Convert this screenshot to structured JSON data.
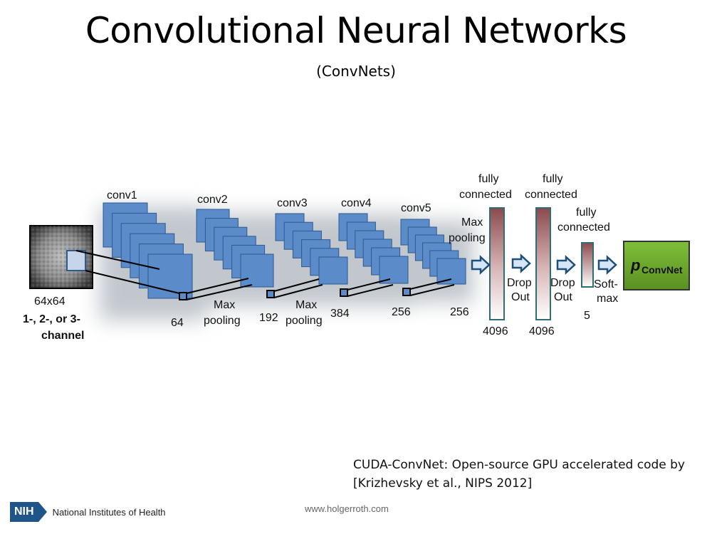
{
  "slide": {
    "title": "Convolutional Neural Networks",
    "subtitle": "(ConvNets)"
  },
  "diagram": {
    "input": {
      "size": "64x64",
      "channels_line1": "1-, 2-, or 3-",
      "channels_line2": "channel"
    },
    "conv_layers": [
      {
        "name": "conv1",
        "count": "64"
      },
      {
        "name": "conv2",
        "count": "192"
      },
      {
        "name": "conv3",
        "count": "384"
      },
      {
        "name": "conv4",
        "count": "256"
      },
      {
        "name": "conv5",
        "count": "256"
      }
    ],
    "max": "Max",
    "pooling": "pooling",
    "fully": "fully",
    "connected": "connected",
    "fc_sizes": [
      "4096",
      "4096",
      "5"
    ],
    "drop": "Drop",
    "out": "Out",
    "soft": "Soft-",
    "softmax_tail": "max",
    "output_p": "p",
    "output_sub": "ConvNet"
  },
  "footer": {
    "credit_line1": "CUDA-ConvNet: Open-source GPU accelerated code by",
    "credit_line2": "[Krizhevsky et al., NIPS 2012]",
    "org_badge": "NIH",
    "org_name": "National Institutes of Health",
    "website": "www.holgerroth.com"
  },
  "colors": {
    "layer_fill": "#5b8bc9",
    "layer_stroke": "#2e5a8e",
    "output_fill": "#6aa42a",
    "fc_top": "#8d4e50",
    "arrow_fill": "#d5e6f7",
    "arrow_stroke": "#1f4e79"
  }
}
